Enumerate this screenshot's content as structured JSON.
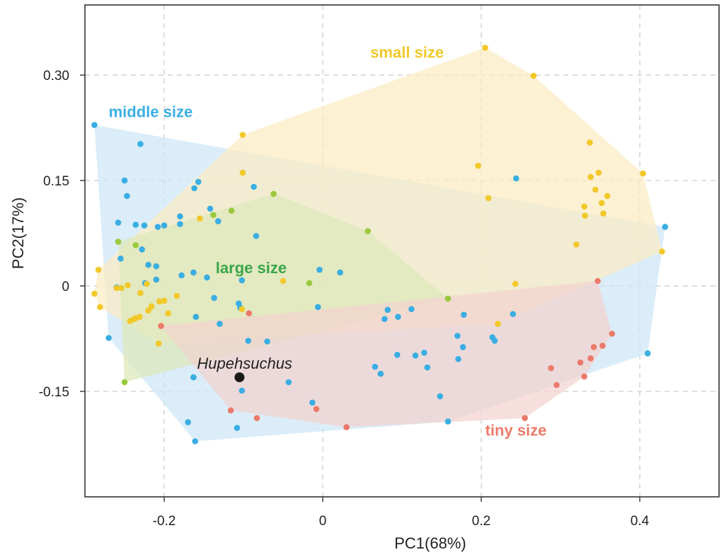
{
  "chart_data": {
    "type": "scatter",
    "title": "",
    "xlabel": "PC1(68%)",
    "ylabel": "PC2(17%)",
    "xlim": [
      -0.3,
      0.5
    ],
    "ylim": [
      -0.3,
      0.4
    ],
    "x_ticks": [
      {
        "value": -0.2,
        "label": "-0.2"
      },
      {
        "value": 0,
        "label": "0"
      },
      {
        "value": 0.2,
        "label": "0.2"
      },
      {
        "value": 0.4,
        "label": "0.4"
      }
    ],
    "y_ticks": [
      {
        "value": 0.3,
        "label": "0.30"
      },
      {
        "value": 0.15,
        "label": "0.15"
      },
      {
        "value": 0,
        "label": "0"
      },
      {
        "value": -0.15,
        "label": "-0.15"
      }
    ],
    "grid": true,
    "series": [
      {
        "name": "middle size",
        "color": "#3aaee3",
        "hull_color": "#cde6f7",
        "label_pos": [
          -0.27,
          0.24
        ],
        "points": [
          [
            -0.288,
            0.229
          ],
          [
            -0.23,
            0.202
          ],
          [
            -0.25,
            0.15
          ],
          [
            -0.247,
            0.128
          ],
          [
            -0.258,
            0.09
          ],
          [
            -0.236,
            0.087
          ],
          [
            -0.225,
            0.086
          ],
          [
            -0.208,
            0.084
          ],
          [
            -0.2,
            0.086
          ],
          [
            -0.18,
            0.099
          ],
          [
            -0.18,
            0.088
          ],
          [
            -0.162,
            0.139
          ],
          [
            -0.157,
            0.148
          ],
          [
            -0.142,
            0.11
          ],
          [
            -0.132,
            0.092
          ],
          [
            -0.087,
            0.141
          ],
          [
            -0.084,
            0.071
          ],
          [
            -0.255,
            0.039
          ],
          [
            -0.228,
            0.052
          ],
          [
            -0.22,
            0.03
          ],
          [
            -0.21,
            0.028
          ],
          [
            -0.21,
            0.009
          ],
          [
            -0.224,
            0.004
          ],
          [
            -0.26,
            -0.002
          ],
          [
            -0.178,
            0.015
          ],
          [
            -0.163,
            0.019
          ],
          [
            -0.146,
            0.012
          ],
          [
            -0.102,
            0.008
          ],
          [
            -0.106,
            -0.025
          ],
          [
            -0.104,
            -0.031
          ],
          [
            -0.16,
            -0.044
          ],
          [
            -0.137,
            -0.017
          ],
          [
            -0.13,
            -0.054
          ],
          [
            -0.094,
            -0.078
          ],
          [
            -0.07,
            -0.079
          ],
          [
            -0.004,
            0.023
          ],
          [
            0.022,
            0.019
          ],
          [
            -0.006,
            -0.03
          ],
          [
            0.082,
            -0.034
          ],
          [
            0.078,
            -0.047
          ],
          [
            0.095,
            -0.044
          ],
          [
            0.112,
            -0.033
          ],
          [
            0.066,
            -0.115
          ],
          [
            0.073,
            -0.125
          ],
          [
            0.094,
            -0.098
          ],
          [
            0.117,
            -0.099
          ],
          [
            0.128,
            -0.095
          ],
          [
            0.132,
            -0.116
          ],
          [
            0.17,
            -0.071
          ],
          [
            0.177,
            -0.087
          ],
          [
            0.171,
            -0.104
          ],
          [
            0.178,
            -0.041
          ],
          [
            0.214,
            -0.073
          ],
          [
            0.217,
            -0.078
          ],
          [
            0.24,
            -0.04
          ],
          [
            0.148,
            -0.157
          ],
          [
            0.158,
            -0.193
          ],
          [
            0.244,
            0.153
          ],
          [
            0.432,
            0.084
          ],
          [
            0.41,
            -0.096
          ],
          [
            -0.27,
            -0.074
          ],
          [
            -0.163,
            -0.13
          ],
          [
            -0.102,
            -0.149
          ],
          [
            -0.043,
            -0.137
          ],
          [
            -0.013,
            -0.166
          ],
          [
            -0.17,
            -0.194
          ],
          [
            -0.161,
            -0.221
          ],
          [
            -0.108,
            -0.202
          ]
        ],
        "hull": [
          [
            -0.288,
            0.229
          ],
          [
            0.432,
            0.084
          ],
          [
            0.41,
            -0.096
          ],
          [
            0.158,
            -0.193
          ],
          [
            -0.161,
            -0.221
          ],
          [
            -0.27,
            -0.074
          ]
        ]
      },
      {
        "name": "small size",
        "color": "#f2c82a",
        "hull_color": "#fbecc2",
        "label_pos": [
          0.06,
          0.325
        ],
        "points": [
          [
            0.205,
            0.339
          ],
          [
            0.266,
            0.299
          ],
          [
            0.196,
            0.171
          ],
          [
            0.209,
            0.125
          ],
          [
            0.337,
            0.204
          ],
          [
            0.338,
            0.155
          ],
          [
            0.348,
            0.161
          ],
          [
            0.344,
            0.137
          ],
          [
            0.359,
            0.128
          ],
          [
            0.352,
            0.118
          ],
          [
            0.33,
            0.113
          ],
          [
            0.331,
            0.1
          ],
          [
            0.354,
            0.103
          ],
          [
            0.404,
            0.16
          ],
          [
            0.32,
            0.059
          ],
          [
            0.428,
            0.049
          ],
          [
            0.243,
            0.003
          ],
          [
            0.221,
            -0.054
          ],
          [
            -0.101,
            0.215
          ],
          [
            -0.101,
            0.161
          ],
          [
            -0.155,
            0.096
          ],
          [
            -0.05,
            0.007
          ],
          [
            -0.102,
            -0.033
          ],
          [
            -0.283,
            0.023
          ],
          [
            -0.288,
            -0.011
          ],
          [
            -0.281,
            -0.03
          ],
          [
            -0.254,
            -0.003
          ],
          [
            -0.246,
            0.001
          ],
          [
            -0.23,
            -0.01
          ],
          [
            -0.231,
            -0.044
          ],
          [
            -0.236,
            -0.046
          ],
          [
            -0.222,
            0.003
          ],
          [
            -0.216,
            -0.029
          ],
          [
            -0.22,
            -0.035
          ],
          [
            -0.206,
            -0.022
          ],
          [
            -0.2,
            -0.021
          ],
          [
            -0.195,
            -0.039
          ],
          [
            -0.243,
            -0.05
          ],
          [
            -0.26,
            -0.003
          ],
          [
            -0.238,
            -0.047
          ],
          [
            -0.207,
            -0.082
          ],
          [
            -0.184,
            -0.014
          ]
        ],
        "hull": [
          [
            0.205,
            0.339
          ],
          [
            0.266,
            0.299
          ],
          [
            0.404,
            0.16
          ],
          [
            0.428,
            0.049
          ],
          [
            0.221,
            -0.054
          ],
          [
            -0.207,
            -0.082
          ],
          [
            -0.281,
            -0.03
          ],
          [
            -0.288,
            -0.011
          ],
          [
            -0.283,
            0.023
          ],
          [
            -0.101,
            0.215
          ]
        ]
      },
      {
        "name": "large size",
        "color": "#9bc93d",
        "hull_color": "#dde8b8",
        "label_pos": [
          -0.135,
          0.018
        ],
        "points": [
          [
            -0.062,
            0.131
          ],
          [
            -0.115,
            0.107
          ],
          [
            -0.138,
            0.101
          ],
          [
            -0.258,
            0.063
          ],
          [
            -0.236,
            0.058
          ],
          [
            0.057,
            0.078
          ],
          [
            -0.017,
            0.004
          ],
          [
            0.158,
            -0.018
          ],
          [
            -0.25,
            -0.137
          ]
        ],
        "hull": [
          [
            -0.062,
            0.131
          ],
          [
            0.057,
            0.078
          ],
          [
            0.158,
            -0.018
          ],
          [
            -0.25,
            -0.137
          ],
          [
            -0.258,
            0.063
          ]
        ]
      },
      {
        "name": "tiny size",
        "color": "#ec7a6a",
        "hull_color": "#f3d3ce",
        "label_pos": [
          0.205,
          -0.213
        ],
        "points": [
          [
            0.347,
            0.007
          ],
          [
            0.365,
            -0.068
          ],
          [
            0.353,
            -0.085
          ],
          [
            0.342,
            -0.087
          ],
          [
            0.338,
            -0.103
          ],
          [
            0.325,
            -0.109
          ],
          [
            0.288,
            -0.117
          ],
          [
            0.33,
            -0.129
          ],
          [
            0.295,
            -0.141
          ],
          [
            0.255,
            -0.188
          ],
          [
            -0.093,
            -0.039
          ],
          [
            -0.204,
            -0.057
          ],
          [
            -0.116,
            -0.177
          ],
          [
            -0.083,
            -0.188
          ],
          [
            -0.008,
            -0.175
          ],
          [
            0.03,
            -0.201
          ]
        ],
        "hull": [
          [
            0.347,
            0.007
          ],
          [
            0.365,
            -0.068
          ],
          [
            0.33,
            -0.129
          ],
          [
            0.255,
            -0.188
          ],
          [
            0.03,
            -0.201
          ],
          [
            -0.116,
            -0.177
          ],
          [
            -0.204,
            -0.057
          ]
        ]
      }
    ],
    "annotations": [
      {
        "label": "Hupehsuchus",
        "x": -0.105,
        "y": -0.13,
        "color": "#1a1a1a"
      }
    ],
    "legend": "none (group labels placed inside plot)"
  }
}
